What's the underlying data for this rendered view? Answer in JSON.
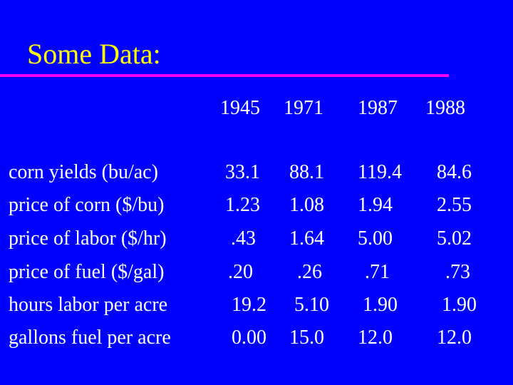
{
  "slide": {
    "title": "Some Data:",
    "colors": {
      "background": "#0000FF",
      "title": "#FFFF00",
      "rule": "#FF00FF",
      "text": "#FFFFFF"
    }
  },
  "table": {
    "years": [
      "1945",
      "1971",
      "1987",
      "1988"
    ],
    "rows": [
      {
        "label": "corn yields (bu/ac)",
        "values": [
          "33.1",
          "88.1",
          "119.4",
          "84.6"
        ]
      },
      {
        "label": "price of corn ($/bu)",
        "values": [
          "1.23",
          "1.08",
          "1.94",
          "2.55"
        ]
      },
      {
        "label": "price of labor ($/hr)",
        "values": [
          ".43",
          "1.64",
          "5.00",
          "5.02"
        ]
      },
      {
        "label": "price of fuel ($/gal)",
        "values": [
          ".20",
          ".26",
          ".71",
          ".73"
        ]
      },
      {
        "label": "hours labor per acre",
        "values": [
          "19.2",
          "5.10",
          "1.90",
          "1.90"
        ]
      },
      {
        "label": "gallons fuel per acre",
        "values": [
          "0.00",
          "15.0",
          "12.0",
          "12.0"
        ]
      }
    ]
  }
}
